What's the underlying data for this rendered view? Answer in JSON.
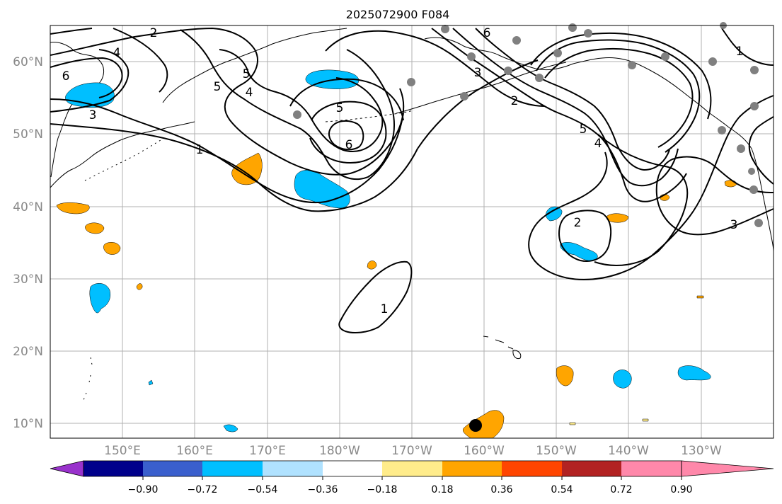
{
  "title": "2025072900 F084",
  "map": {
    "lon_range": [
      "140°E",
      "124°W"
    ],
    "lat_range": [
      "8°N",
      "65°N"
    ],
    "lon_labels": [
      "150°E",
      "160°E",
      "170°E",
      "180°W",
      "170°W",
      "160°W",
      "150°W",
      "140°W",
      "130°W"
    ],
    "lat_labels": [
      "10°N",
      "20°N",
      "30°N",
      "40°N",
      "50°N",
      "60°N"
    ],
    "contour_labels": [
      "2",
      "4",
      "6",
      "3",
      "5",
      "4",
      "5",
      "6",
      "1",
      "5",
      "3",
      "6",
      "2",
      "5",
      "4",
      "1",
      "2",
      "3",
      "1"
    ],
    "station_marker_color": "#808080",
    "storm_marker_color": "#000000"
  },
  "colorbar": {
    "tick_labels": [
      "−0.90",
      "−0.72",
      "−0.54",
      "−0.36",
      "−0.18",
      "0.18",
      "0.36",
      "0.54",
      "0.72",
      "0.90"
    ],
    "colors": [
      "#9932CC",
      "#00008B",
      "#3A5FCD",
      "#00BFFF",
      "#B0E2FF",
      "#FFFFFF",
      "#FFEC8B",
      "#FFA500",
      "#FF4500",
      "#B22222",
      "#FF88AA"
    ]
  }
}
